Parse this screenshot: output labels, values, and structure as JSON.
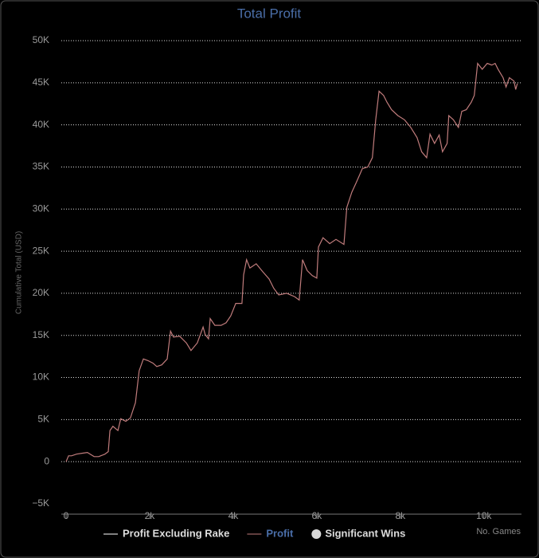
{
  "chart_data": {
    "type": "line",
    "title": "Total Profit",
    "x_label": "No. Games",
    "y_label": "Cumulative Total (USD)",
    "xlim": [
      0,
      10900
    ],
    "ylim": [
      -5000,
      50000
    ],
    "xticks": [
      0,
      {
        "value": 2000,
        "label": "2k"
      },
      {
        "value": 4000,
        "label": "4k"
      },
      {
        "value": 6000,
        "label": "6k"
      },
      {
        "value": 8000,
        "label": "8k"
      },
      {
        "value": 10000,
        "label": "10k"
      }
    ],
    "yticks": [
      {
        "value": -5000,
        "label": "−5K"
      },
      0,
      {
        "value": 5000,
        "label": "5K"
      },
      {
        "value": 10000,
        "label": "10K"
      },
      {
        "value": 15000,
        "label": "15K"
      },
      {
        "value": 20000,
        "label": "20K"
      },
      {
        "value": 25000,
        "label": "25K"
      },
      {
        "value": 30000,
        "label": "30K"
      },
      {
        "value": 35000,
        "label": "35K"
      },
      {
        "value": 40000,
        "label": "40K"
      },
      {
        "value": 45000,
        "label": "45K"
      },
      {
        "value": 50000,
        "label": "50K"
      }
    ],
    "grid": true,
    "legend_before": [
      {
        "name": "Profit Excluding Rake",
        "color": "#ffffff",
        "symbol": "line"
      }
    ],
    "legend_after": [
      {
        "name": "Significant Wins",
        "color": "#d8d8d8",
        "symbol": "circle"
      }
    ],
    "series": [
      {
        "name": "Profit",
        "color": "#c07c7c",
        "legend_text_color": "#4a6ea8",
        "x": [
          0,
          60,
          130,
          250,
          380,
          510,
          670,
          780,
          930,
          1010,
          1050,
          1120,
          1240,
          1310,
          1430,
          1540,
          1660,
          1750,
          1850,
          1960,
          2080,
          2170,
          2290,
          2420,
          2500,
          2570,
          2720,
          2880,
          2990,
          3140,
          3280,
          3330,
          3410,
          3450,
          3560,
          3710,
          3830,
          3940,
          4060,
          4210,
          4250,
          4320,
          4400,
          4550,
          4700,
          4860,
          4970,
          5090,
          5280,
          5470,
          5580,
          5660,
          5770,
          5890,
          6000,
          6040,
          6150,
          6310,
          6460,
          6650,
          6720,
          6840,
          6950,
          7090,
          7220,
          7330,
          7410,
          7490,
          7600,
          7680,
          7790,
          7940,
          8100,
          8250,
          8400,
          8510,
          8630,
          8710,
          8820,
          8930,
          9010,
          9120,
          9160,
          9270,
          9390,
          9470,
          9580,
          9700,
          9770,
          9850,
          9960,
          10080,
          10190,
          10270,
          10340,
          10460,
          10530,
          10610,
          10720,
          10760,
          10800
        ],
        "values": [
          0,
          700,
          700,
          900,
          1000,
          1100,
          600,
          600,
          900,
          1200,
          3700,
          4200,
          3700,
          5100,
          4800,
          5200,
          7000,
          10800,
          12200,
          12000,
          11700,
          11300,
          11500,
          12200,
          15500,
          14800,
          14900,
          14100,
          13200,
          14100,
          16000,
          15100,
          14600,
          17000,
          16200,
          16200,
          16500,
          17300,
          18800,
          18800,
          22200,
          24000,
          23000,
          23500,
          22600,
          21700,
          20600,
          19800,
          20000,
          19600,
          19200,
          24000,
          22700,
          22100,
          21800,
          25500,
          26600,
          25900,
          26400,
          25800,
          30200,
          32000,
          33200,
          34800,
          35000,
          36100,
          40600,
          44000,
          43500,
          42700,
          41800,
          41100,
          40600,
          39700,
          38500,
          36800,
          36100,
          38900,
          37800,
          38800,
          36800,
          37800,
          41100,
          40600,
          39700,
          41600,
          41800,
          42700,
          43500,
          47300,
          46600,
          47300,
          47100,
          47300,
          46600,
          45600,
          44500,
          45600,
          45200,
          44200,
          44900
        ]
      }
    ]
  }
}
